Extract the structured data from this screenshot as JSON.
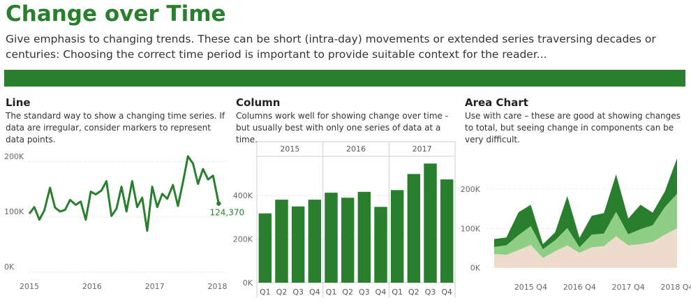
{
  "header": {
    "title": "Change over Time",
    "description": "Give emphasis to changing trends. These can be short (intra-day) movements or extended series traversing decades or centuries: Choosing the correct time period is important to provide suitable context for the reader..."
  },
  "colors": {
    "brand": "#2a7f2e",
    "dark_green": "#2a7f2e",
    "mid_green": "#8fcf85",
    "tan": "#eddccb"
  },
  "panels": {
    "line": {
      "title": "Line",
      "description": "The standard way to show a changing time series. If data are irregular, consider markers to represent data points."
    },
    "column": {
      "title": "Column",
      "description": "Columns work well for showing change over time - but usually best with only one series of data at a time."
    },
    "area": {
      "title": "Area Chart",
      "description": "Use with care – these are good at showing changes to total, but seeing change in components can be very difficult."
    }
  },
  "chart_data": [
    {
      "type": "line",
      "title": "Line",
      "ylim": [
        0,
        215000
      ],
      "yticks": [
        0,
        100000,
        200000
      ],
      "ytick_labels": [
        "0K",
        "100K",
        "200K"
      ],
      "xlim": [
        2015,
        2018.15
      ],
      "xticks": [
        2015,
        2016,
        2017,
        2018
      ],
      "xtick_labels": [
        "2015",
        "2016",
        "2017",
        "2018"
      ],
      "end_label": "124,370",
      "grid": true,
      "series": [
        {
          "x": [
            2015.0,
            2015.08,
            2015.16,
            2015.24,
            2015.33,
            2015.41,
            2015.49,
            2015.57,
            2015.65,
            2015.74,
            2015.82,
            2015.9,
            2015.98,
            2016.06,
            2016.15,
            2016.23,
            2016.31,
            2016.39,
            2016.47,
            2016.55,
            2016.64,
            2016.72,
            2016.8,
            2016.88,
            2016.96,
            2017.04,
            2017.12,
            2017.2,
            2017.29,
            2017.37,
            2017.45,
            2017.53,
            2017.61,
            2017.69,
            2017.77,
            2017.85,
            2017.93,
            2018.02
          ],
          "values": [
            106000,
            118000,
            95000,
            112000,
            153000,
            117000,
            110000,
            113000,
            131000,
            122000,
            128000,
            95000,
            146000,
            141000,
            148000,
            165000,
            102000,
            115000,
            155000,
            110000,
            165000,
            118000,
            135000,
            75000,
            155000,
            118000,
            142000,
            133000,
            158000,
            120000,
            163000,
            210000,
            197000,
            160000,
            187000,
            168000,
            175000,
            124370
          ]
        }
      ]
    },
    {
      "type": "bar",
      "title": "Column",
      "ylim": [
        0,
        580000
      ],
      "yticks": [
        0,
        200000,
        400000
      ],
      "ytick_labels": [
        "0K",
        "200K",
        "400K"
      ],
      "groups": [
        "2015",
        "2016",
        "2017"
      ],
      "categories": [
        "Q1",
        "Q2",
        "Q3",
        "Q4"
      ],
      "grid": true,
      "series": [
        {
          "group": "2015",
          "values": [
            318000,
            381000,
            350000,
            381000
          ]
        },
        {
          "group": "2016",
          "values": [
            413000,
            390000,
            417000,
            348000
          ]
        },
        {
          "group": "2017",
          "values": [
            425000,
            499000,
            547000,
            474000
          ]
        }
      ]
    },
    {
      "type": "area",
      "title": "Area Chart",
      "ylim": [
        -20000,
        290000
      ],
      "yticks": [
        0,
        100000,
        200000
      ],
      "ytick_labels": [
        "0K",
        "100K",
        "200K"
      ],
      "x_labels": [
        "2015 Q4",
        "2016 Q4",
        "2017 Q4",
        "2018 Q4"
      ],
      "x_label_indices": [
        3,
        7,
        11,
        15
      ],
      "grid": true,
      "series": [
        {
          "name": "",
          "color": "#eddccb",
          "values": [
            35000,
            33000,
            45000,
            58000,
            25000,
            42000,
            57000,
            38000,
            52000,
            55000,
            80000,
            57000,
            60000,
            66000,
            84000,
            100000
          ]
        },
        {
          "name": "",
          "color": "#8fcf85",
          "values": [
            18000,
            24000,
            38000,
            48000,
            22000,
            28000,
            44000,
            14000,
            32000,
            32000,
            62000,
            28000,
            38000,
            42000,
            70000,
            88000
          ]
        },
        {
          "name": "",
          "color": "#2a7f2e",
          "values": [
            20000,
            20000,
            58000,
            54000,
            13000,
            20000,
            81000,
            24000,
            48000,
            52000,
            95000,
            40000,
            62000,
            32000,
            40000,
            90000
          ]
        }
      ]
    }
  ]
}
